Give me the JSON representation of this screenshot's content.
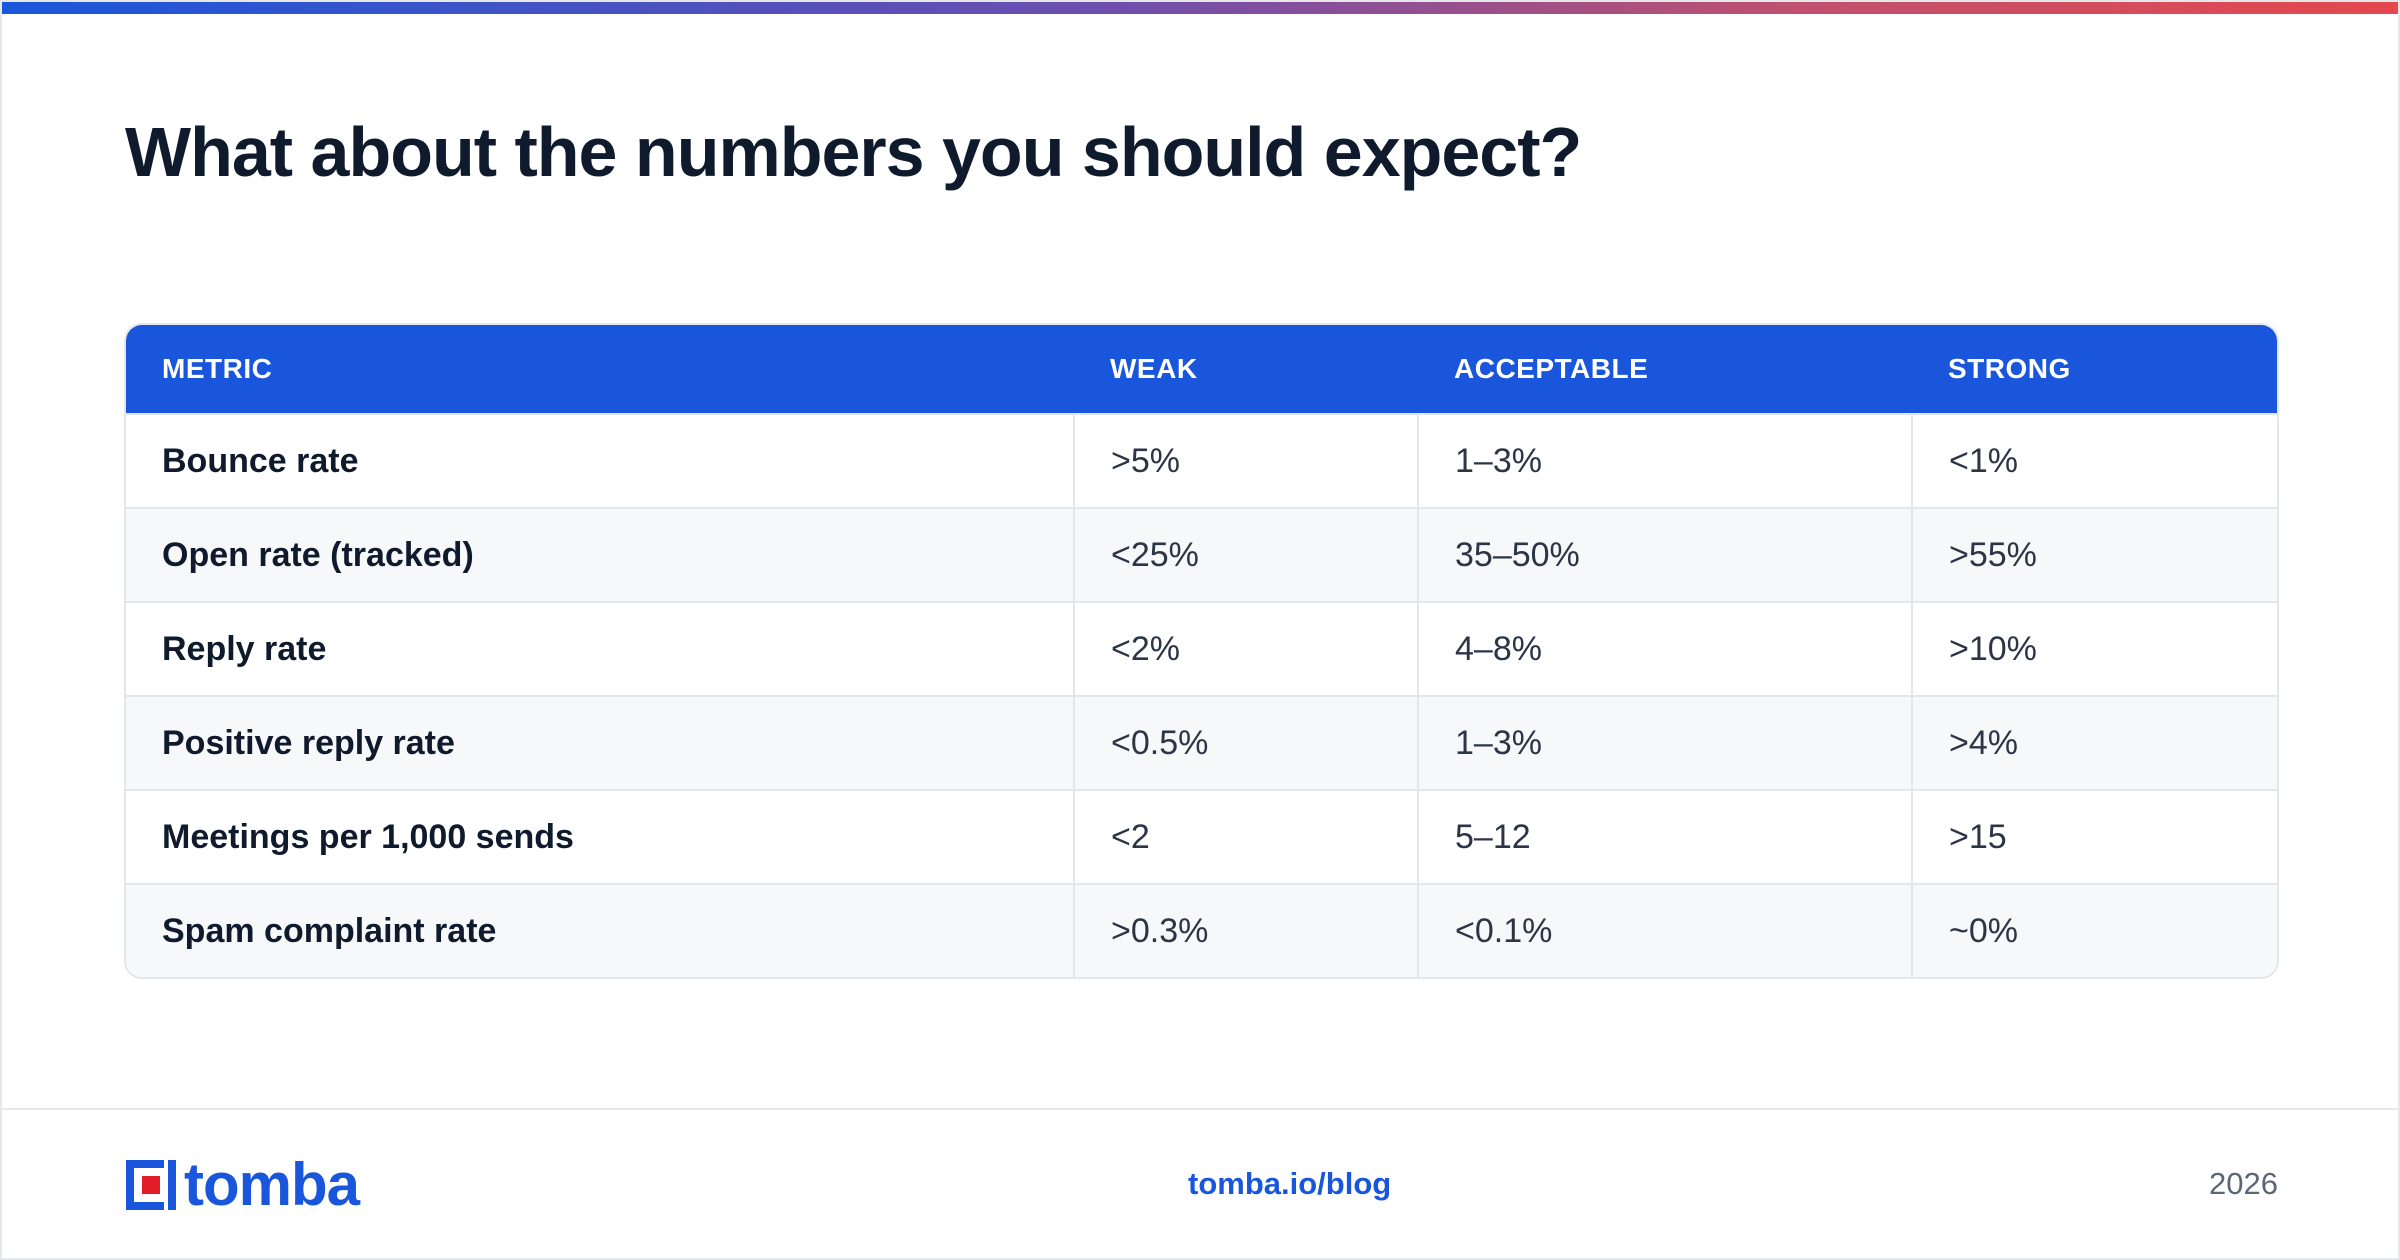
{
  "header": {
    "title": "What about the numbers you should expect?"
  },
  "table": {
    "columns": [
      "METRIC",
      "WEAK",
      "ACCEPTABLE",
      "STRONG"
    ],
    "rows": [
      [
        "Bounce rate",
        ">5%",
        "1–3%",
        "<1%"
      ],
      [
        "Open rate (tracked)",
        "<25%",
        "35–50%",
        ">55%"
      ],
      [
        "Reply rate",
        "<2%",
        "4–8%",
        ">10%"
      ],
      [
        "Positive reply rate",
        "<0.5%",
        "1–3%",
        ">4%"
      ],
      [
        "Meetings per 1,000 sends",
        "<2",
        "5–12",
        ">15"
      ],
      [
        "Spam complaint rate",
        ">0.3%",
        "<0.1%",
        "~0%"
      ]
    ]
  },
  "footer": {
    "logo_text": "tomba",
    "link": "tomba.io/blog",
    "year": "2026"
  },
  "colors": {
    "accent": "#1a56db",
    "title": "#0f1b2d",
    "logo_red": "#e11d2a"
  }
}
